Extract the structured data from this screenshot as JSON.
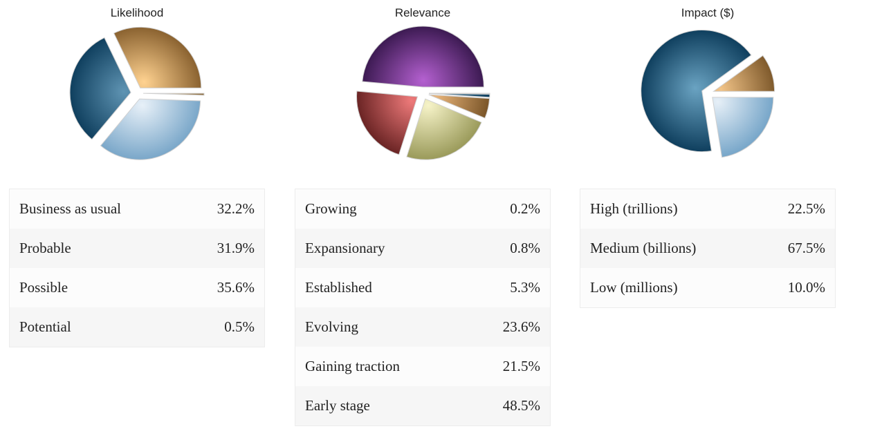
{
  "chart_data": [
    {
      "type": "pie",
      "title": "Likelihood",
      "rows": [
        {
          "label": "Business as usual",
          "value": 32.2,
          "display": "32.2%"
        },
        {
          "label": "Probable",
          "value": 31.9,
          "display": "31.9%"
        },
        {
          "label": "Possible",
          "value": 35.6,
          "display": "35.6%"
        },
        {
          "label": "Potential",
          "value": 0.5,
          "display": "0.5%"
        }
      ],
      "slices": [
        {
          "value": 0.5,
          "colors": [
            "#fff0d4",
            "#8a6838"
          ]
        },
        {
          "value": 35.6,
          "colors": [
            "#e7f0f8",
            "#7aa7c9"
          ]
        },
        {
          "value": 31.9,
          "colors": [
            "#5f94b3",
            "#0f3f5e"
          ]
        },
        {
          "value": 32.2,
          "colors": [
            "#ffd290",
            "#8a6230"
          ]
        }
      ]
    },
    {
      "type": "pie",
      "title": "Relevance",
      "rows": [
        {
          "label": "Growing",
          "value": 0.2,
          "display": "0.2%"
        },
        {
          "label": "Expansionary",
          "value": 0.8,
          "display": "0.8%"
        },
        {
          "label": "Established",
          "value": 5.3,
          "display": "5.3%"
        },
        {
          "label": "Evolving",
          "value": 23.6,
          "display": "23.6%"
        },
        {
          "label": "Gaining traction",
          "value": 21.5,
          "display": "21.5%"
        },
        {
          "label": "Early stage",
          "value": 48.5,
          "display": "48.5%"
        }
      ],
      "slices": [
        {
          "value": 0.2,
          "colors": [
            "#eaf2f8",
            "#86aecb"
          ]
        },
        {
          "value": 0.8,
          "colors": [
            "#4e86a8",
            "#0f3f5e"
          ]
        },
        {
          "value": 5.3,
          "colors": [
            "#e8b47a",
            "#7a5528"
          ]
        },
        {
          "value": 23.6,
          "colors": [
            "#f6f3c8",
            "#9a9a5a"
          ]
        },
        {
          "value": 21.5,
          "colors": [
            "#ee7a7a",
            "#6a2424"
          ]
        },
        {
          "value": 48.5,
          "colors": [
            "#b460d0",
            "#3c1a52"
          ]
        }
      ]
    },
    {
      "type": "pie",
      "title": "Impact ($)",
      "rows": [
        {
          "label": "High (trillions)",
          "value": 22.5,
          "display": "22.5%"
        },
        {
          "label": "Medium (billions)",
          "value": 67.5,
          "display": "67.5%"
        },
        {
          "label": "Low (millions)",
          "value": 10.0,
          "display": "10.0%"
        }
      ],
      "slices": [
        {
          "value": 22.5,
          "colors": [
            "#e6eff7",
            "#77a6c9"
          ]
        },
        {
          "value": 67.5,
          "colors": [
            "#6aa3c2",
            "#0f3f5e"
          ]
        },
        {
          "value": 10.0,
          "colors": [
            "#f2c488",
            "#7f5a2c"
          ]
        }
      ]
    }
  ]
}
